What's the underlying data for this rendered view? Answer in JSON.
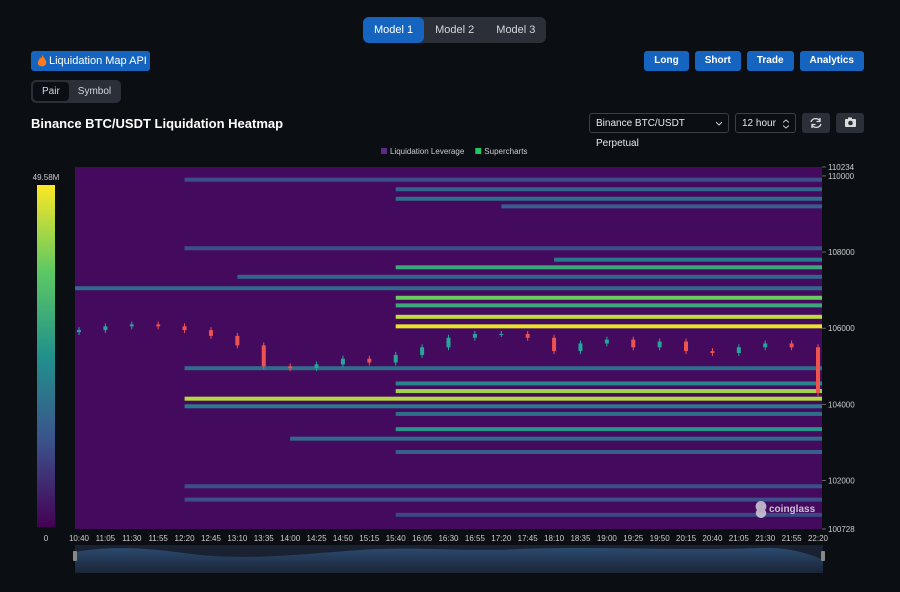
{
  "tabs": [
    "Model 1",
    "Model 2",
    "Model 3"
  ],
  "api_button": "Liquidation Map API",
  "nav_buttons": [
    "Long",
    "Short",
    "Trade",
    "Analytics"
  ],
  "toggle": [
    "Pair",
    "Symbol"
  ],
  "selects": {
    "exchange": "Binance BTC/USDT Perpetual",
    "interval": "12 hour"
  },
  "chart_data": {
    "type": "heatmap",
    "title": "Binance BTC/USDT Liquidation Heatmap",
    "legend": [
      {
        "name": "Liquidation Leverage",
        "color": "#5b2a86"
      },
      {
        "name": "Supercharts",
        "color": "#22c55e"
      }
    ],
    "watermark": "coinglass",
    "x": [
      "10:40",
      "11:05",
      "11:30",
      "11:55",
      "12:20",
      "12:45",
      "13:10",
      "13:35",
      "14:00",
      "14:25",
      "14:50",
      "15:15",
      "15:40",
      "16:05",
      "16:30",
      "16:55",
      "17:20",
      "17:45",
      "18:10",
      "18:35",
      "19:00",
      "19:25",
      "19:50",
      "20:15",
      "20:40",
      "21:05",
      "21:30",
      "21:55",
      "22:20"
    ],
    "ylim": [
      100728,
      110234
    ],
    "yticks": [
      100728,
      102000,
      104000,
      106000,
      108000,
      110000,
      110234
    ],
    "clim": [
      0,
      49580000
    ],
    "colorbar_ticks": [
      0,
      {
        "value": 49580000,
        "label": "49.58M"
      }
    ],
    "base_color": "#440a5e",
    "colors": [
      "#440154",
      "#3b528b",
      "#21918c",
      "#5ec962",
      "#fde725"
    ],
    "up_color": "#26a69a",
    "down_color": "#ef5350",
    "bands": [
      {
        "price": 109900,
        "start": "12:20",
        "intensity": 12000000
      },
      {
        "price": 109650,
        "start": "15:40",
        "intensity": 16000000
      },
      {
        "price": 109400,
        "start": "15:40",
        "intensity": 18000000
      },
      {
        "price": 109200,
        "start": "17:20",
        "intensity": 15000000
      },
      {
        "price": 108100,
        "start": "12:20",
        "intensity": 12000000
      },
      {
        "price": 107800,
        "start": "18:10",
        "intensity": 20000000
      },
      {
        "price": 107600,
        "start": "15:40",
        "intensity": 30000000
      },
      {
        "price": 107350,
        "start": "13:10",
        "intensity": 16000000
      },
      {
        "price": 107050,
        "start": "10:40",
        "intensity": 17000000
      },
      {
        "price": 106800,
        "start": "15:40",
        "intensity": 38000000
      },
      {
        "price": 106600,
        "start": "15:40",
        "intensity": 30000000
      },
      {
        "price": 106300,
        "start": "15:40",
        "intensity": 45000000
      },
      {
        "price": 106050,
        "start": "15:40",
        "intensity": 48000000
      },
      {
        "price": 104950,
        "start": "12:20",
        "intensity": 18000000
      },
      {
        "price": 104550,
        "start": "15:40",
        "intensity": 22000000
      },
      {
        "price": 104350,
        "start": "15:40",
        "intensity": 42000000
      },
      {
        "price": 104150,
        "start": "12:20",
        "intensity": 44000000
      },
      {
        "price": 103950,
        "start": "12:20",
        "intensity": 20000000
      },
      {
        "price": 103750,
        "start": "15:40",
        "intensity": 18000000
      },
      {
        "price": 103350,
        "start": "15:40",
        "intensity": 26000000
      },
      {
        "price": 103100,
        "start": "14:00",
        "intensity": 17000000
      },
      {
        "price": 102750,
        "start": "15:40",
        "intensity": 15000000
      },
      {
        "price": 101850,
        "start": "12:20",
        "intensity": 12000000
      },
      {
        "price": 101500,
        "start": "12:20",
        "intensity": 12000000
      },
      {
        "price": 101100,
        "start": "15:40",
        "intensity": 11000000
      }
    ],
    "candles": {
      "open": [
        105900,
        105950,
        106050,
        106100,
        106050,
        105950,
        105800,
        105550,
        105000,
        104950,
        105050,
        105200,
        105100,
        105300,
        105500,
        105750,
        105850,
        105850,
        105750,
        105400,
        105600,
        105700,
        105500,
        105650,
        105400,
        105350,
        105500,
        105600,
        105500
      ],
      "close": [
        105950,
        106050,
        106100,
        106050,
        105950,
        105800,
        105550,
        105000,
        104950,
        105050,
        105200,
        105100,
        105300,
        105500,
        105750,
        105850,
        105850,
        105750,
        105400,
        105600,
        105700,
        105500,
        105650,
        105400,
        105350,
        105500,
        105600,
        105500,
        104300
      ]
    }
  }
}
